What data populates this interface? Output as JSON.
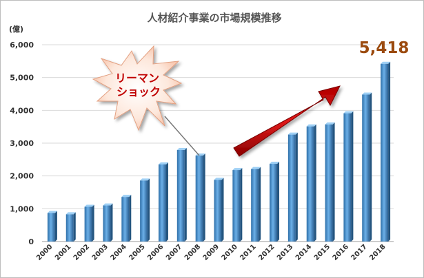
{
  "chart_data": {
    "type": "bar",
    "title": "人材紹介事業の市場規模推移",
    "unit_label": "(億)",
    "categories": [
      "2000",
      "2001",
      "2002",
      "2003",
      "2004",
      "2005",
      "2006",
      "2007",
      "2008",
      "2009",
      "2010",
      "2011",
      "2012",
      "2013",
      "2014",
      "2015",
      "2016",
      "2017",
      "2018"
    ],
    "values": [
      870,
      830,
      1060,
      1100,
      1360,
      1860,
      2350,
      2790,
      2620,
      1880,
      2180,
      2210,
      2370,
      3260,
      3510,
      3570,
      3910,
      4480,
      5418
    ],
    "yticks": [
      "0",
      "1,000",
      "2,000",
      "3,000",
      "4,000",
      "5,000",
      "6,000"
    ],
    "ylim": [
      0,
      6000
    ],
    "grid": true,
    "bar_color": "#5b9bd5",
    "annotations": {
      "callout_line1": "リーマン",
      "callout_line2": "ショック",
      "callout_points_to": "2008",
      "highlight_value": "5,418",
      "highlight_for": "2018",
      "arrow_color": "#cc1111"
    }
  }
}
